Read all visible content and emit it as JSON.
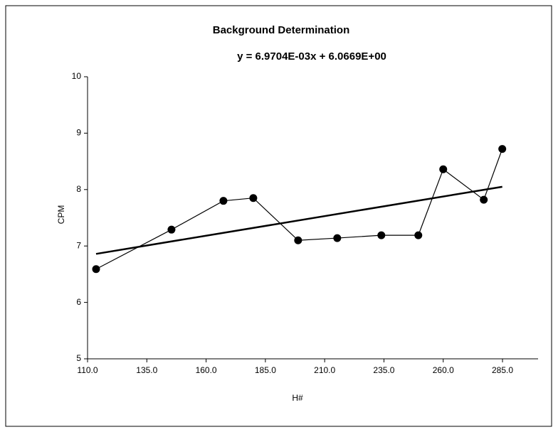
{
  "chart_data": {
    "type": "line",
    "title": "Background Determination",
    "annotation": "y = 6.9704E-03x + 6.0669E+00",
    "x_label": "H#",
    "y_label": "CPM",
    "x": [
      113.6,
      145.4,
      167.3,
      179.9,
      198.8,
      215.3,
      233.9,
      249.5,
      260.0,
      277.1,
      284.9
    ],
    "series": [
      {
        "color": "#000000",
        "values": [
          6.59,
          7.29,
          7.8,
          7.85,
          7.1,
          7.14,
          7.19,
          7.19,
          8.36,
          7.82,
          8.72
        ]
      }
    ],
    "trendline": {
      "color": "#000000",
      "x": [
        113.6,
        284.9
      ],
      "values": [
        6.86,
        8.05
      ]
    },
    "xlim": [
      110,
      300
    ],
    "ylim": [
      5,
      10
    ],
    "xticks": [
      {
        "value": 110,
        "label": "110.0"
      },
      {
        "value": 135,
        "label": "135.0"
      },
      {
        "value": 160,
        "label": "160.0"
      },
      {
        "value": 185,
        "label": "185.0"
      },
      {
        "value": 210,
        "label": "210.0"
      },
      {
        "value": 235,
        "label": "235.0"
      },
      {
        "value": 260,
        "label": "260.0"
      },
      {
        "value": 285,
        "label": "285.0"
      }
    ],
    "yticks": [
      5,
      6,
      7,
      8,
      9,
      10
    ],
    "grid": false
  }
}
